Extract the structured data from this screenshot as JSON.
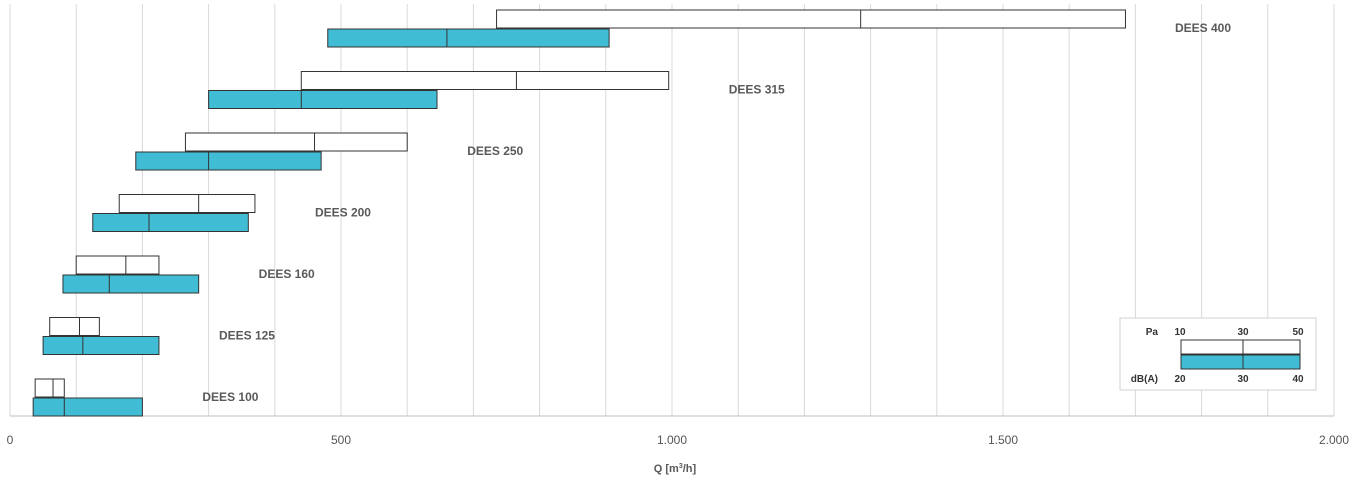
{
  "chart_data": {
    "type": "range-bar",
    "xlabel_main": "Q [m",
    "xlabel_sup": "3",
    "xlabel_end": "/h]",
    "xlim": [
      0,
      2000
    ],
    "x_ticks": [
      0,
      500,
      1000,
      1500,
      2000
    ],
    "x_tick_labels": [
      "0",
      "500",
      "1.000",
      "1.500",
      "2.000"
    ],
    "grid": true,
    "colors": {
      "pa_bar_fill": "#ffffff",
      "db_bar_fill": "#40bcd4",
      "bar_stroke": "#333333",
      "grid": "#d9d9d9"
    },
    "models": [
      {
        "name": "DEES 400",
        "pa_range": [
          735,
          1685
        ],
        "pa_mid": 1285,
        "db_range": [
          480,
          905
        ],
        "db_mid": 660
      },
      {
        "name": "DEES 315",
        "pa_range": [
          440,
          995
        ],
        "pa_mid": 765,
        "db_range": [
          300,
          645
        ],
        "db_mid": 440
      },
      {
        "name": "DEES 250",
        "pa_range": [
          265,
          600
        ],
        "pa_mid": 460,
        "db_range": [
          190,
          470
        ],
        "db_mid": 300
      },
      {
        "name": "DEES 200",
        "pa_range": [
          165,
          370
        ],
        "pa_mid": 285,
        "db_range": [
          125,
          360
        ],
        "db_mid": 210
      },
      {
        "name": "DEES 160",
        "pa_range": [
          100,
          225
        ],
        "pa_mid": 175,
        "db_range": [
          80,
          285
        ],
        "db_mid": 150
      },
      {
        "name": "DEES 125",
        "pa_range": [
          60,
          135
        ],
        "pa_mid": 105,
        "db_range": [
          50,
          225
        ],
        "db_mid": 110
      },
      {
        "name": "DEES 100",
        "pa_range": [
          38,
          82
        ],
        "pa_mid": 65,
        "db_range": [
          35,
          200
        ],
        "db_mid": 82
      }
    ],
    "legend": {
      "position": "bottom-right",
      "pa_label": "Pa",
      "pa_values": [
        "10",
        "30",
        "50"
      ],
      "db_label": "dB(A)",
      "db_values": [
        "20",
        "30",
        "40"
      ]
    }
  }
}
